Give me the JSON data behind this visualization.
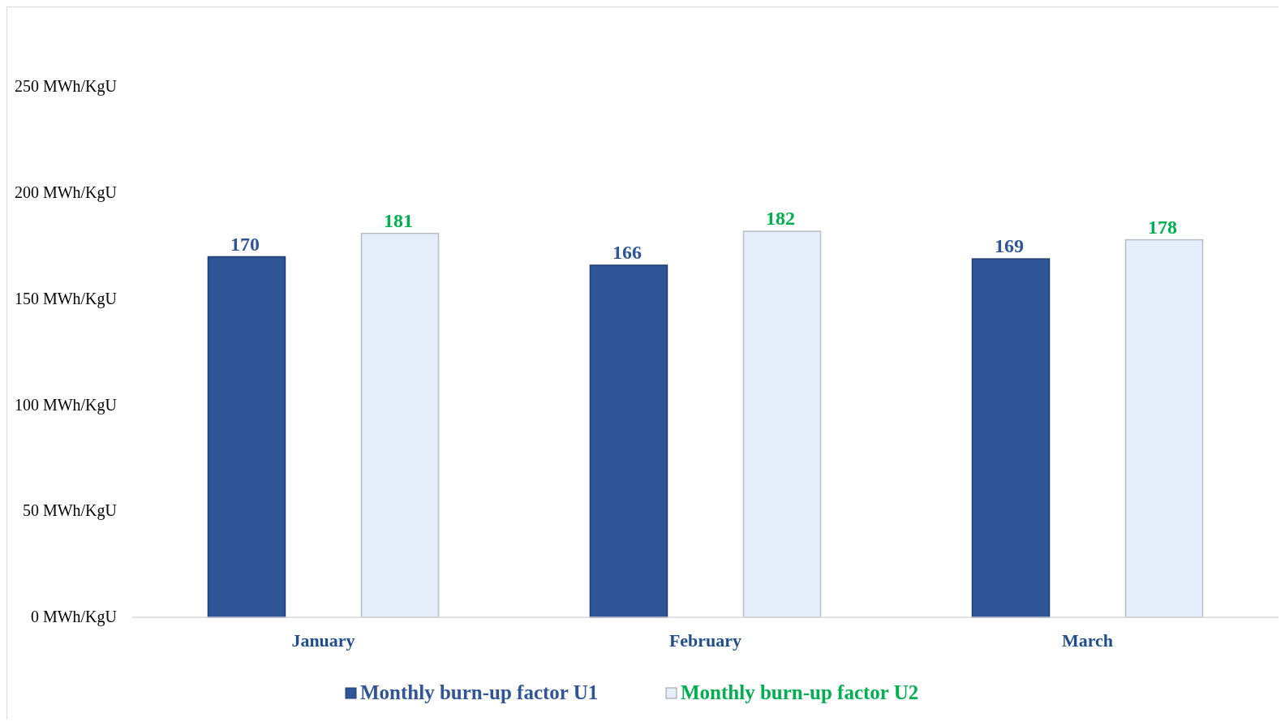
{
  "chart_data": {
    "type": "bar",
    "categories": [
      "January",
      "February",
      "March"
    ],
    "series": [
      {
        "name": "Monthly burn-up factor U1",
        "color": "#2f5597",
        "values": [
          170,
          166,
          169
        ]
      },
      {
        "name": "Monthly burn-up factor U2",
        "color": "#e6eefb",
        "values": [
          181,
          182,
          178
        ]
      }
    ],
    "ylim": [
      0,
      288
    ],
    "yticks": [
      {
        "value": 0,
        "label": "0 MWh/KgU"
      },
      {
        "value": 50,
        "label": "50 MWh/KgU"
      },
      {
        "value": 100,
        "label": "100 MWh/KgU"
      },
      {
        "value": 150,
        "label": "150 MWh/KgU"
      },
      {
        "value": 200,
        "label": "200 MWh/KgU"
      },
      {
        "value": 250,
        "label": "250 MWh/KgU"
      }
    ],
    "data_labels": true,
    "grid": false,
    "legend": "bottom"
  }
}
